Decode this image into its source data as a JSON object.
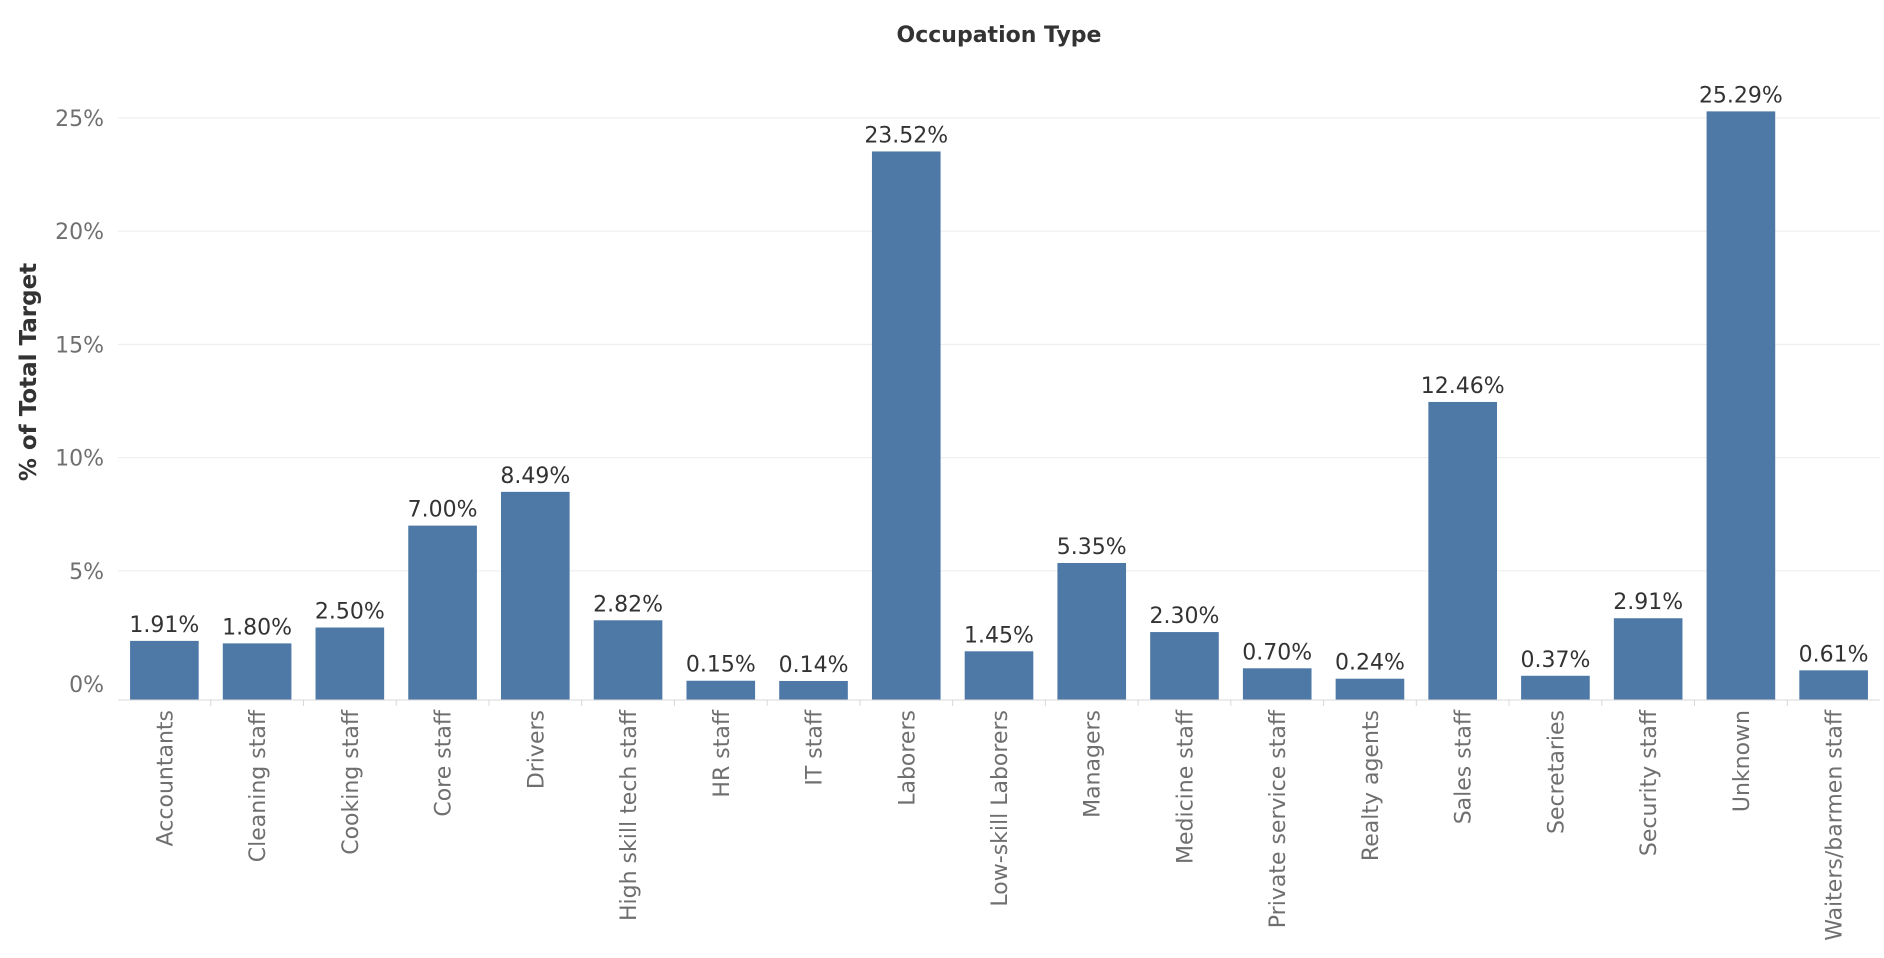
{
  "chart_data": {
    "type": "bar",
    "title": "Occupation Type",
    "xlabel": "",
    "ylabel": "% of Total Target",
    "ylim": [
      -0.7,
      28
    ],
    "y_ticks": [
      0,
      5,
      10,
      15,
      20,
      25
    ],
    "y_tick_labels": [
      "0%",
      "5%",
      "10%",
      "15%",
      "20%",
      "25%"
    ],
    "grid": true,
    "bar_color": "#4e79a7",
    "categories": [
      "Accountants",
      "Cleaning staff",
      "Cooking staff",
      "Core staff",
      "Drivers",
      "High skill tech staff",
      "HR staff",
      "IT staff",
      "Laborers",
      "Low-skill Laborers",
      "Managers",
      "Medicine staff",
      "Private service staff",
      "Realty agents",
      "Sales staff",
      "Secretaries",
      "Security staff",
      "Unknown",
      "Waiters/barmen staff"
    ],
    "values": [
      1.91,
      1.8,
      2.5,
      7.0,
      8.49,
      2.82,
      0.15,
      0.14,
      23.52,
      1.45,
      5.35,
      2.3,
      0.7,
      0.24,
      12.46,
      0.37,
      2.91,
      25.29,
      0.61
    ],
    "value_labels": [
      "1.91%",
      "1.80%",
      "2.50%",
      "7.00%",
      "8.49%",
      "2.82%",
      "0.15%",
      "0.14%",
      "23.52%",
      "1.45%",
      "5.35%",
      "2.30%",
      "0.70%",
      "0.24%",
      "12.46%",
      "0.37%",
      "2.91%",
      "25.29%",
      "0.61%"
    ]
  }
}
